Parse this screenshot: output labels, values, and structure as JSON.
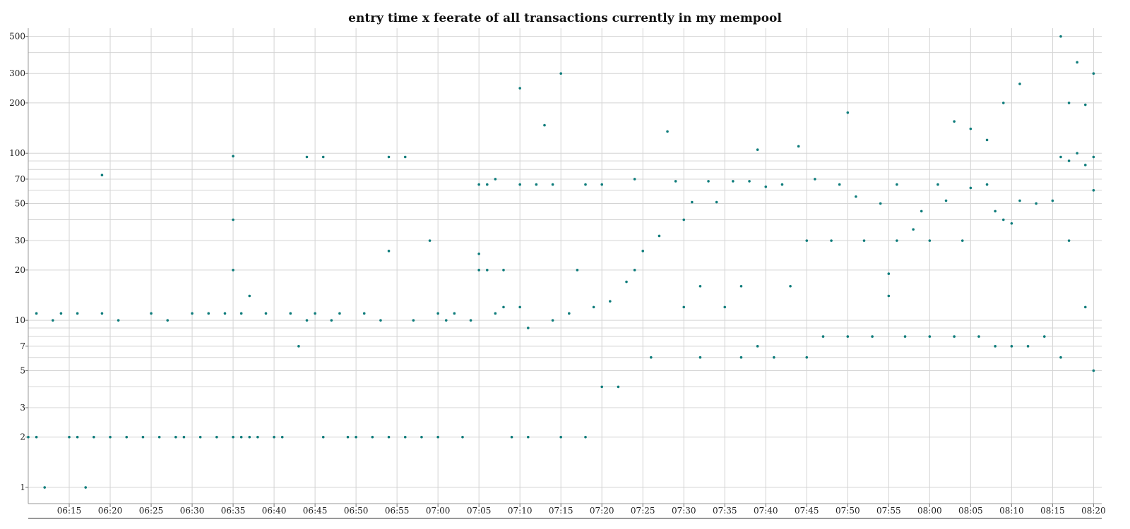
{
  "chart_data": {
    "type": "scatter",
    "title": "entry time x feerate of all transactions currently in my mempool",
    "xlabel": "",
    "ylabel": "",
    "y_scale": "log",
    "ylim": [
      0.8,
      560
    ],
    "xlim": [
      "06:10",
      "08:21"
    ],
    "grid": true,
    "color": "#0e7c7b",
    "y_ticks": [
      1,
      2,
      3,
      5,
      7,
      10,
      20,
      30,
      50,
      70,
      100,
      200,
      300,
      500
    ],
    "y_extra_gridlines": [
      4,
      6,
      8,
      9,
      40,
      60,
      80,
      90,
      400
    ],
    "x_ticks": [
      "06:15",
      "06:20",
      "06:25",
      "06:30",
      "06:35",
      "06:40",
      "06:45",
      "06:50",
      "06:55",
      "07:00",
      "07:05",
      "07:10",
      "07:15",
      "07:20",
      "07:25",
      "07:30",
      "07:35",
      "07:40",
      "07:45",
      "07:50",
      "07:55",
      "08:00",
      "08:05",
      "08:10",
      "08:15",
      "08:20"
    ],
    "points": [
      [
        "06:10",
        2
      ],
      [
        "06:11",
        2
      ],
      [
        "06:11",
        11
      ],
      [
        "06:12",
        1
      ],
      [
        "06:13",
        10
      ],
      [
        "06:14",
        11
      ],
      [
        "06:15",
        2
      ],
      [
        "06:16",
        2
      ],
      [
        "06:16",
        11
      ],
      [
        "06:17",
        1
      ],
      [
        "06:18",
        2
      ],
      [
        "06:19",
        74
      ],
      [
        "06:19",
        11
      ],
      [
        "06:20",
        2
      ],
      [
        "06:21",
        10
      ],
      [
        "06:22",
        2
      ],
      [
        "06:24",
        2
      ],
      [
        "06:25",
        11
      ],
      [
        "06:26",
        2
      ],
      [
        "06:27",
        10
      ],
      [
        "06:28",
        2
      ],
      [
        "06:29",
        2
      ],
      [
        "06:30",
        11
      ],
      [
        "06:31",
        2
      ],
      [
        "06:32",
        11
      ],
      [
        "06:33",
        2
      ],
      [
        "06:34",
        11
      ],
      [
        "06:35",
        2
      ],
      [
        "06:35",
        96
      ],
      [
        "06:35",
        40
      ],
      [
        "06:35",
        20
      ],
      [
        "06:36",
        2
      ],
      [
        "06:36",
        11
      ],
      [
        "06:37",
        14
      ],
      [
        "06:37",
        2
      ],
      [
        "06:38",
        2
      ],
      [
        "06:39",
        11
      ],
      [
        "06:40",
        2
      ],
      [
        "06:41",
        2
      ],
      [
        "06:42",
        11
      ],
      [
        "06:43",
        7
      ],
      [
        "06:44",
        10
      ],
      [
        "06:44",
        95
      ],
      [
        "06:45",
        11
      ],
      [
        "06:46",
        2
      ],
      [
        "06:46",
        95
      ],
      [
        "06:47",
        10
      ],
      [
        "06:48",
        11
      ],
      [
        "06:49",
        2
      ],
      [
        "06:50",
        2
      ],
      [
        "06:51",
        11
      ],
      [
        "06:52",
        2
      ],
      [
        "06:53",
        10
      ],
      [
        "06:54",
        2
      ],
      [
        "06:54",
        95
      ],
      [
        "06:54",
        26
      ],
      [
        "06:56",
        95
      ],
      [
        "06:56",
        2
      ],
      [
        "06:57",
        10
      ],
      [
        "06:58",
        2
      ],
      [
        "06:59",
        30
      ],
      [
        "07:00",
        11
      ],
      [
        "07:00",
        2
      ],
      [
        "07:01",
        10
      ],
      [
        "07:02",
        11
      ],
      [
        "07:03",
        2
      ],
      [
        "07:04",
        10
      ],
      [
        "07:05",
        65
      ],
      [
        "07:05",
        20
      ],
      [
        "07:05",
        25
      ],
      [
        "07:06",
        65
      ],
      [
        "07:06",
        20
      ],
      [
        "07:07",
        70
      ],
      [
        "07:07",
        11
      ],
      [
        "07:08",
        12
      ],
      [
        "07:08",
        20
      ],
      [
        "07:09",
        2
      ],
      [
        "07:10",
        245
      ],
      [
        "07:10",
        12
      ],
      [
        "07:10",
        65
      ],
      [
        "07:11",
        9
      ],
      [
        "07:11",
        2
      ],
      [
        "07:12",
        65
      ],
      [
        "07:13",
        147
      ],
      [
        "07:14",
        10
      ],
      [
        "07:14",
        65
      ],
      [
        "07:15",
        300
      ],
      [
        "07:15",
        2
      ],
      [
        "07:16",
        11
      ],
      [
        "07:17",
        20
      ],
      [
        "07:18",
        65
      ],
      [
        "07:18",
        2
      ],
      [
        "07:19",
        12
      ],
      [
        "07:20",
        4
      ],
      [
        "07:20",
        65
      ],
      [
        "07:21",
        13
      ],
      [
        "07:22",
        4
      ],
      [
        "07:23",
        17
      ],
      [
        "07:24",
        70
      ],
      [
        "07:24",
        20
      ],
      [
        "07:25",
        26
      ],
      [
        "07:26",
        6
      ],
      [
        "07:27",
        32
      ],
      [
        "07:28",
        135
      ],
      [
        "07:29",
        68
      ],
      [
        "07:30",
        40
      ],
      [
        "07:30",
        12
      ],
      [
        "07:31",
        51
      ],
      [
        "07:32",
        16
      ],
      [
        "07:32",
        6
      ],
      [
        "07:33",
        68
      ],
      [
        "07:34",
        51
      ],
      [
        "07:35",
        12
      ],
      [
        "07:36",
        68
      ],
      [
        "07:37",
        16
      ],
      [
        "07:37",
        6
      ],
      [
        "07:38",
        68
      ],
      [
        "07:39",
        7
      ],
      [
        "07:39",
        105
      ],
      [
        "07:40",
        63
      ],
      [
        "07:41",
        6
      ],
      [
        "07:42",
        65
      ],
      [
        "07:43",
        16
      ],
      [
        "07:44",
        110
      ],
      [
        "07:45",
        30
      ],
      [
        "07:45",
        6
      ],
      [
        "07:46",
        70
      ],
      [
        "07:47",
        8
      ],
      [
        "07:48",
        30
      ],
      [
        "07:49",
        65
      ],
      [
        "07:50",
        175
      ],
      [
        "07:50",
        8
      ],
      [
        "07:51",
        55
      ],
      [
        "07:52",
        30
      ],
      [
        "07:53",
        8
      ],
      [
        "07:54",
        50
      ],
      [
        "07:55",
        19
      ],
      [
        "07:55",
        14
      ],
      [
        "07:56",
        30
      ],
      [
        "07:56",
        65
      ],
      [
        "07:57",
        8
      ],
      [
        "07:58",
        35
      ],
      [
        "07:59",
        45
      ],
      [
        "08:00",
        8
      ],
      [
        "08:00",
        30
      ],
      [
        "08:01",
        65
      ],
      [
        "08:02",
        52
      ],
      [
        "08:03",
        8
      ],
      [
        "08:03",
        155
      ],
      [
        "08:04",
        30
      ],
      [
        "08:05",
        62
      ],
      [
        "08:05",
        140
      ],
      [
        "08:06",
        8
      ],
      [
        "08:07",
        120
      ],
      [
        "08:07",
        65
      ],
      [
        "08:08",
        7
      ],
      [
        "08:08",
        45
      ],
      [
        "08:09",
        40
      ],
      [
        "08:09",
        200
      ],
      [
        "08:10",
        7
      ],
      [
        "08:10",
        38
      ],
      [
        "08:11",
        52
      ],
      [
        "08:11",
        260
      ],
      [
        "08:12",
        7
      ],
      [
        "08:13",
        50
      ],
      [
        "08:14",
        8
      ],
      [
        "08:15",
        52
      ],
      [
        "08:16",
        500
      ],
      [
        "08:16",
        6
      ],
      [
        "08:16",
        95
      ],
      [
        "08:17",
        90
      ],
      [
        "08:17",
        200
      ],
      [
        "08:17",
        30
      ],
      [
        "08:18",
        100
      ],
      [
        "08:18",
        350
      ],
      [
        "08:19",
        85
      ],
      [
        "08:19",
        195
      ],
      [
        "08:19",
        12
      ],
      [
        "08:20",
        95
      ],
      [
        "08:20",
        5
      ],
      [
        "08:20",
        60
      ],
      [
        "08:20",
        300
      ]
    ]
  }
}
